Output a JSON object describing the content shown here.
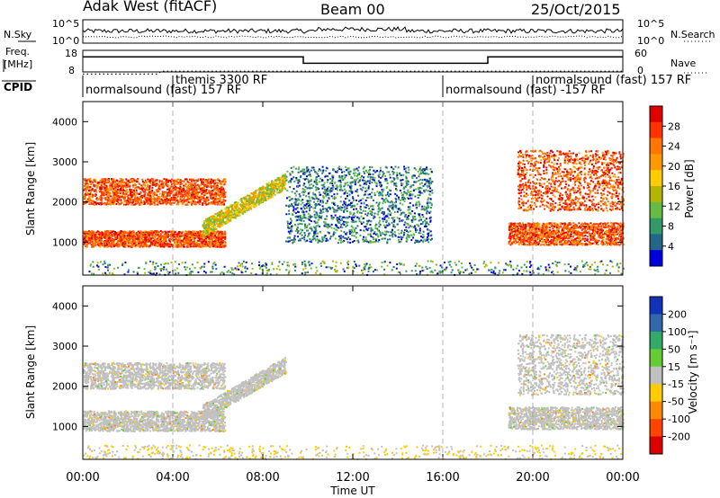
{
  "header": {
    "title": "Adak West (fitACF)",
    "beam": "Beam 00",
    "date": "25/Oct/2015"
  },
  "noise_panel": {
    "left_label": "N.Sky",
    "right_label": "N.Search",
    "left_ticks": [
      "10^5",
      "10^0"
    ],
    "right_ticks": [
      "10^5",
      "10^0"
    ]
  },
  "freq_panel": {
    "left_label_line1": "Freq.",
    "left_label_line2": "[MHz]",
    "left_ticks": [
      "18",
      "8"
    ],
    "right_label": "Nave",
    "right_ticks": [
      "60",
      "0"
    ]
  },
  "cpid_panel": {
    "label": "CPID",
    "segments": [
      {
        "text": "normalsound (fast) 157 RF",
        "start_hour": 0
      },
      {
        "text": "themis 3300 RF",
        "start_hour": 4
      },
      {
        "text": "normalsound (fast) -157 RF",
        "start_hour": 16
      },
      {
        "text": "normalsound (fast) 157 RF",
        "start_hour": 20
      }
    ]
  },
  "power_panel": {
    "ylabel": "Slant Range [km]",
    "yticks": [
      "4000",
      "3000",
      "2000",
      "1000"
    ],
    "cbar_label": "Power [dB]",
    "cbar_ticks": [
      "28",
      "24",
      "20",
      "16",
      "12",
      "8",
      "4"
    ],
    "cbar_colors": [
      "#e00000",
      "#ff3300",
      "#ff7700",
      "#ff9900",
      "#ffcc00",
      "#b5b500",
      "#66bb44",
      "#339966",
      "#226688",
      "#0000dd"
    ]
  },
  "velocity_panel": {
    "ylabel": "Slant Range [km]",
    "yticks": [
      "4000",
      "3000",
      "2000",
      "1000"
    ],
    "cbar_label": "Velocity [m s⁻¹]",
    "cbar_ticks": [
      "200",
      "100",
      "50",
      "15",
      "-15",
      "-50",
      "-100",
      "-200"
    ],
    "cbar_colors": [
      "#1133bb",
      "#3366aa",
      "#33aa66",
      "#66cc33",
      "#c0c0c0",
      "#ffcc00",
      "#ff8800",
      "#ff4400",
      "#dd0000"
    ]
  },
  "x_axis": {
    "ticks": [
      "00:00",
      "04:00",
      "08:00",
      "12:00",
      "16:00",
      "20:00",
      "00:00"
    ],
    "label": "Time UT"
  },
  "chart_data": [
    {
      "type": "heatmap",
      "title": "Adak West (fitACF)",
      "subtitle": "Beam 00",
      "date": "25/Oct/2015",
      "panel": "Power",
      "xlabel": "Time UT",
      "ylabel": "Slant Range [km]",
      "xlim_hours": [
        0,
        24
      ],
      "ylim_km": [
        180,
        4500
      ],
      "colorbar": {
        "label": "Power [dB]",
        "ticks": [
          28,
          24,
          20,
          16,
          12,
          8,
          4
        ]
      },
      "features": [
        {
          "name": "lower-band",
          "start_hour": 0.0,
          "end_hour": 6.3,
          "range_km": [
            900,
            1300
          ],
          "power_db": 24
        },
        {
          "name": "upper-band",
          "start_hour": 0.0,
          "end_hour": 6.3,
          "range_km": [
            1950,
            2600
          ],
          "power_db": 22
        },
        {
          "name": "rising-band",
          "start_hour": 5.3,
          "end_hour": 9.0,
          "range_km": [
            1400,
            2600
          ],
          "power_db": 14
        },
        {
          "name": "scattered-echoes",
          "start_hour": 9.0,
          "end_hour": 15.5,
          "range_km": [
            1000,
            2900
          ],
          "power_db": 8
        },
        {
          "name": "evening-lower",
          "start_hour": 18.9,
          "end_hour": 24.0,
          "range_km": [
            950,
            1500
          ],
          "power_db": 24
        },
        {
          "name": "evening-upper",
          "start_hour": 19.3,
          "end_hour": 24.0,
          "range_km": [
            1800,
            3300
          ],
          "power_db": 20
        }
      ]
    },
    {
      "type": "heatmap",
      "panel": "Velocity",
      "xlabel": "Time UT",
      "ylabel": "Slant Range [km]",
      "xlim_hours": [
        0,
        24
      ],
      "ylim_km": [
        180,
        4500
      ],
      "colorbar": {
        "label": "Velocity [m s⁻¹]",
        "ticks": [
          200,
          100,
          50,
          15,
          -15,
          -50,
          -100,
          -200
        ]
      },
      "features": [
        {
          "name": "lower-band",
          "start_hour": 0.0,
          "end_hour": 6.3,
          "range_km": [
            900,
            1400
          ],
          "velocity": 0
        },
        {
          "name": "upper-band",
          "start_hour": 0.0,
          "end_hour": 6.3,
          "range_km": [
            1950,
            2600
          ],
          "velocity": 0
        },
        {
          "name": "rising-band",
          "start_hour": 5.3,
          "end_hour": 9.0,
          "range_km": [
            1400,
            2600
          ],
          "velocity": -20
        },
        {
          "name": "evening-lower",
          "start_hour": 18.9,
          "end_hour": 24.0,
          "range_km": [
            950,
            1500
          ],
          "velocity": 0
        },
        {
          "name": "evening-upper",
          "start_hour": 19.3,
          "end_hour": 24.0,
          "range_km": [
            1800,
            3300
          ],
          "velocity": 30
        }
      ]
    },
    {
      "type": "line",
      "panel": "Frequency / Nave",
      "series": [
        {
          "name": "Freq.",
          "points": [
            [
              0,
              15
            ],
            [
              9.8,
              15
            ],
            [
              9.8,
              12
            ],
            [
              18.0,
              12
            ],
            [
              18.0,
              15
            ],
            [
              24,
              15
            ]
          ]
        },
        {
          "name": "Nave",
          "points": [
            [
              0,
              4
            ],
            [
              3.3,
              4
            ],
            [
              3.5,
              12
            ],
            [
              24,
              12
            ]
          ]
        }
      ]
    }
  ]
}
